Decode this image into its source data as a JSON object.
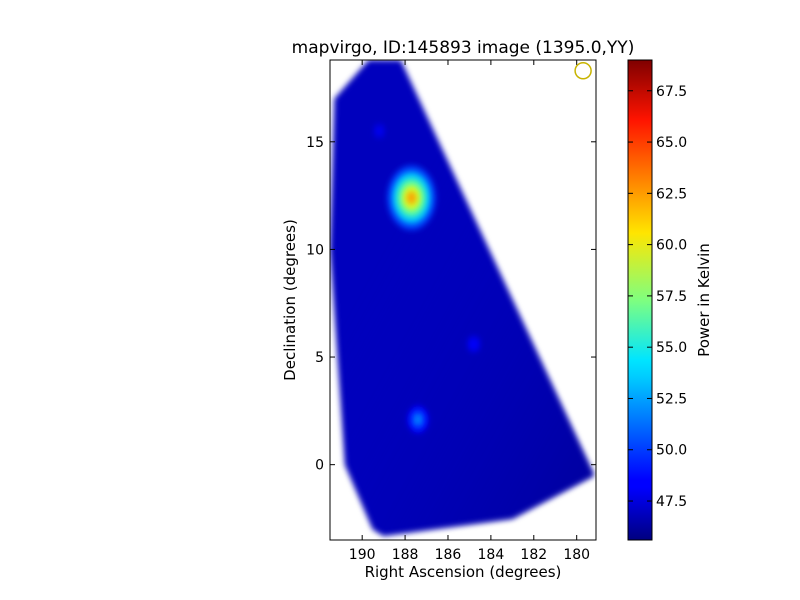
{
  "chart_data": {
    "type": "heatmap",
    "title": "mapvirgo, ID:145893 image (1395.0,YY)",
    "xlabel": "Right Ascension (degrees)",
    "ylabel": "Declination (degrees)",
    "colorbar_label": "Power in Kelvin",
    "xlim": [
      191.5,
      179.1
    ],
    "ylim": [
      -3.5,
      18.8
    ],
    "x_ticks": [
      190,
      188,
      186,
      184,
      182,
      180
    ],
    "y_ticks": [
      0,
      5,
      10,
      15
    ],
    "colorbar_range": [
      45.6,
      69.0
    ],
    "colorbar_ticks": [
      47.5,
      50.0,
      52.5,
      55.0,
      57.5,
      60.0,
      62.5,
      65.0,
      67.5
    ],
    "colormap": "jet",
    "background_level": 47.0,
    "coverage_polygon": [
      [
        189.7,
        18.8
      ],
      [
        188.2,
        18.8
      ],
      [
        179.2,
        -0.5
      ],
      [
        183.0,
        -2.5
      ],
      [
        189.0,
        -3.3
      ],
      [
        189.5,
        -3.0
      ],
      [
        190.8,
        0.0
      ],
      [
        191.5,
        10.0
      ],
      [
        191.3,
        17.0
      ]
    ],
    "sources": [
      {
        "ra": 187.7,
        "dec": 12.4,
        "peak": 62.5
      },
      {
        "ra": 187.4,
        "dec": 2.1,
        "peak": 52.0
      },
      {
        "ra": 184.8,
        "dec": 5.6,
        "peak": 49.0
      },
      {
        "ra": 189.2,
        "dec": 15.5,
        "peak": 48.5
      }
    ],
    "beam_marker": {
      "ra": 179.7,
      "dec": 18.3,
      "color": "#c8b400"
    }
  }
}
